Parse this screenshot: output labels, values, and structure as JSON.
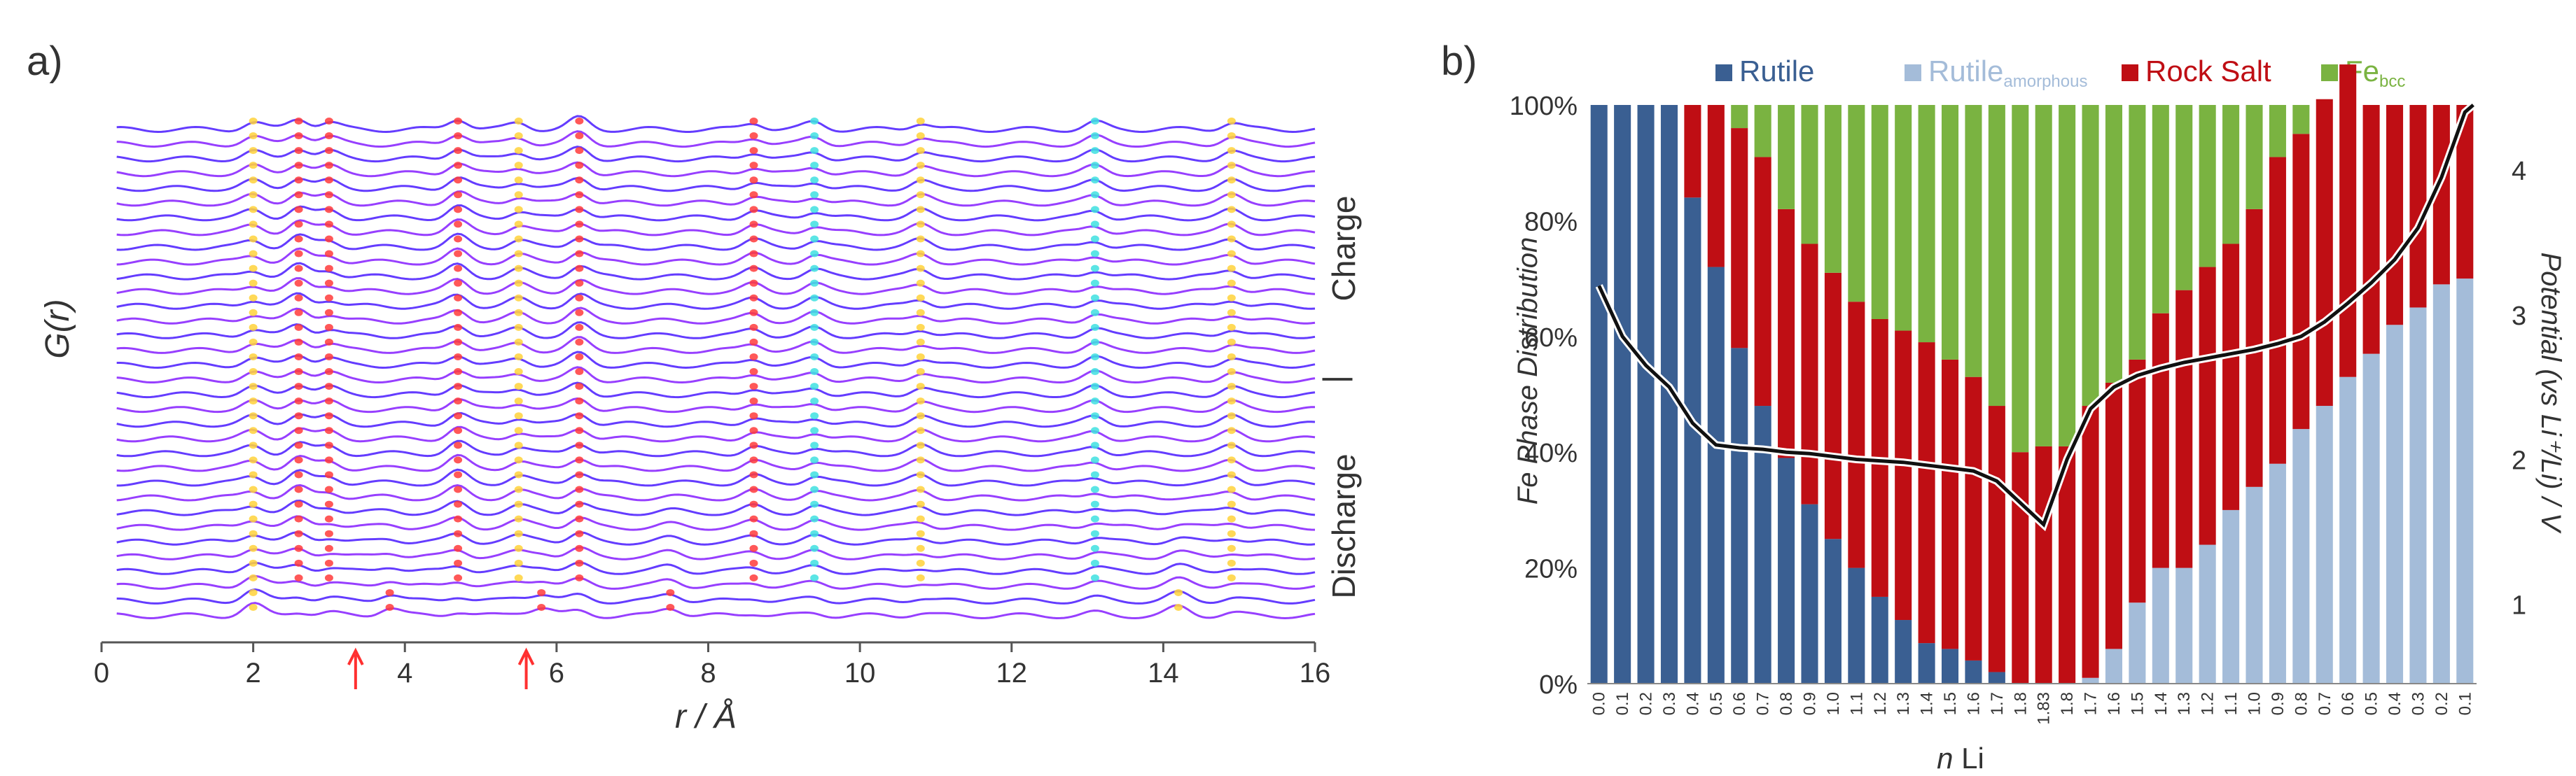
{
  "figure": {
    "panel_a_label": "a)",
    "panel_b_label": "b)"
  },
  "chart_data": [
    {
      "panel": "a",
      "type": "line",
      "title": "",
      "xlabel": "r / Å",
      "ylabel": "G(r)",
      "xlim": [
        0,
        16
      ],
      "x_ticks": [
        "0",
        "2",
        "4",
        "6",
        "8",
        "10",
        "12",
        "14",
        "16"
      ],
      "right_labels": {
        "top": "Charge",
        "divider": "|",
        "bottom": "Discharge"
      },
      "series_count": 34,
      "series_description": "stacked G(r) traces during discharge (bottom) and charge (top); blue-to-purple lines with red/yellow/cyan highlight at peaks",
      "peak_positions_common": [
        2.0,
        2.6,
        3.0,
        4.7,
        5.5,
        6.3,
        8.6,
        9.4,
        10.8,
        13.1,
        14.9
      ],
      "peak_positions_discharge_start": [
        2.0,
        3.8,
        5.8,
        7.5,
        14.2
      ],
      "arrows": [
        {
          "x": 3.35,
          "color": "#ff3030"
        },
        {
          "x": 5.6,
          "color": "#ff3030"
        }
      ],
      "colors": {
        "line_start": "#4a3aff",
        "line_end": "#b040ff",
        "hot": "#ff3b3b",
        "warm": "#ffd23a",
        "cool": "#3ee0e0"
      }
    },
    {
      "panel": "b",
      "type": "bar",
      "stacked": true,
      "title": "",
      "xlabel": "n Li",
      "xlabel_italic_part": "n",
      "xlabel_rest": " Li",
      "ylabel": "Fe Phase Distribution",
      "y2label": "Potential (vs Li⁺/Li) / V",
      "ylim": [
        0,
        100
      ],
      "y_ticks": [
        "0%",
        "20%",
        "40%",
        "60%",
        "80%",
        "100%"
      ],
      "y2lim": [
        0.45,
        4.45
      ],
      "y2_ticks": [
        "1",
        "2",
        "3",
        "4"
      ],
      "legend": [
        {
          "name": "Rutile",
          "color": "#3a5f92"
        },
        {
          "name": "Rutile",
          "sub": "amorphous",
          "color": "#a4bcd9"
        },
        {
          "name": "Rock Salt",
          "color": "#bf0e14"
        },
        {
          "name": "Fe",
          "sub": "bcc",
          "color": "#7ab341"
        }
      ],
      "categories": [
        "0.0",
        "0.1",
        "0.2",
        "0.3",
        "0.4",
        "0.5",
        "0.6",
        "0.7",
        "0.8",
        "0.9",
        "1.0",
        "1.1",
        "1.2",
        "1.3",
        "1.4",
        "1.5",
        "1.6",
        "1.7",
        "1.8",
        "1.83",
        "1.8",
        "1.7",
        "1.6",
        "1.5",
        "1.4",
        "1.3",
        "1.2",
        "1.1",
        "1.0",
        "0.9",
        "0.8",
        "0.7",
        "0.6",
        "0.5",
        "0.4",
        "0.3",
        "0.2",
        "0.1"
      ],
      "series": [
        {
          "name": "Rutile",
          "values": [
            100,
            100,
            100,
            100,
            84,
            72,
            58,
            48,
            39,
            31,
            25,
            20,
            15,
            11,
            7,
            6,
            4,
            2,
            0,
            0,
            0,
            0,
            0,
            0,
            0,
            0,
            0,
            0,
            0,
            0,
            0,
            0,
            0,
            0,
            0,
            0,
            0,
            0
          ]
        },
        {
          "name": "Rutile amorphous",
          "values": [
            0,
            0,
            0,
            0,
            0,
            0,
            0,
            0,
            0,
            0,
            0,
            0,
            0,
            0,
            0,
            0,
            0,
            0,
            0,
            0,
            0,
            1,
            6,
            14,
            20,
            20,
            24,
            30,
            34,
            38,
            44,
            48,
            53,
            57,
            62,
            65,
            69,
            70
          ]
        },
        {
          "name": "Rock Salt",
          "values": [
            0,
            0,
            0,
            0,
            16,
            28,
            38,
            43,
            43,
            45,
            46,
            46,
            48,
            50,
            52,
            50,
            49,
            46,
            40,
            41,
            41,
            47,
            46,
            42,
            44,
            48,
            48,
            46,
            48,
            53,
            51,
            53,
            54,
            43,
            38,
            35,
            31,
            30
          ]
        },
        {
          "name": "Fe bcc",
          "values": [
            0,
            0,
            0,
            0,
            0,
            0,
            4,
            9,
            18,
            24,
            29,
            34,
            37,
            39,
            41,
            44,
            47,
            52,
            60,
            59,
            59,
            52,
            48,
            44,
            36,
            32,
            28,
            24,
            18,
            9,
            5,
            0,
            0,
            0,
            0,
            0,
            0,
            0
          ]
        }
      ],
      "potential_curve": {
        "name": "Potential",
        "color": "#111111",
        "values": [
          3.2,
          2.85,
          2.65,
          2.5,
          2.25,
          2.1,
          2.08,
          2.07,
          2.05,
          2.04,
          2.02,
          2.0,
          1.99,
          1.98,
          1.96,
          1.94,
          1.92,
          1.85,
          1.7,
          1.55,
          2.0,
          2.35,
          2.5,
          2.58,
          2.63,
          2.67,
          2.7,
          2.73,
          2.76,
          2.8,
          2.85,
          2.95,
          3.08,
          3.22,
          3.38,
          3.6,
          3.95,
          4.4
        ]
      }
    }
  ]
}
